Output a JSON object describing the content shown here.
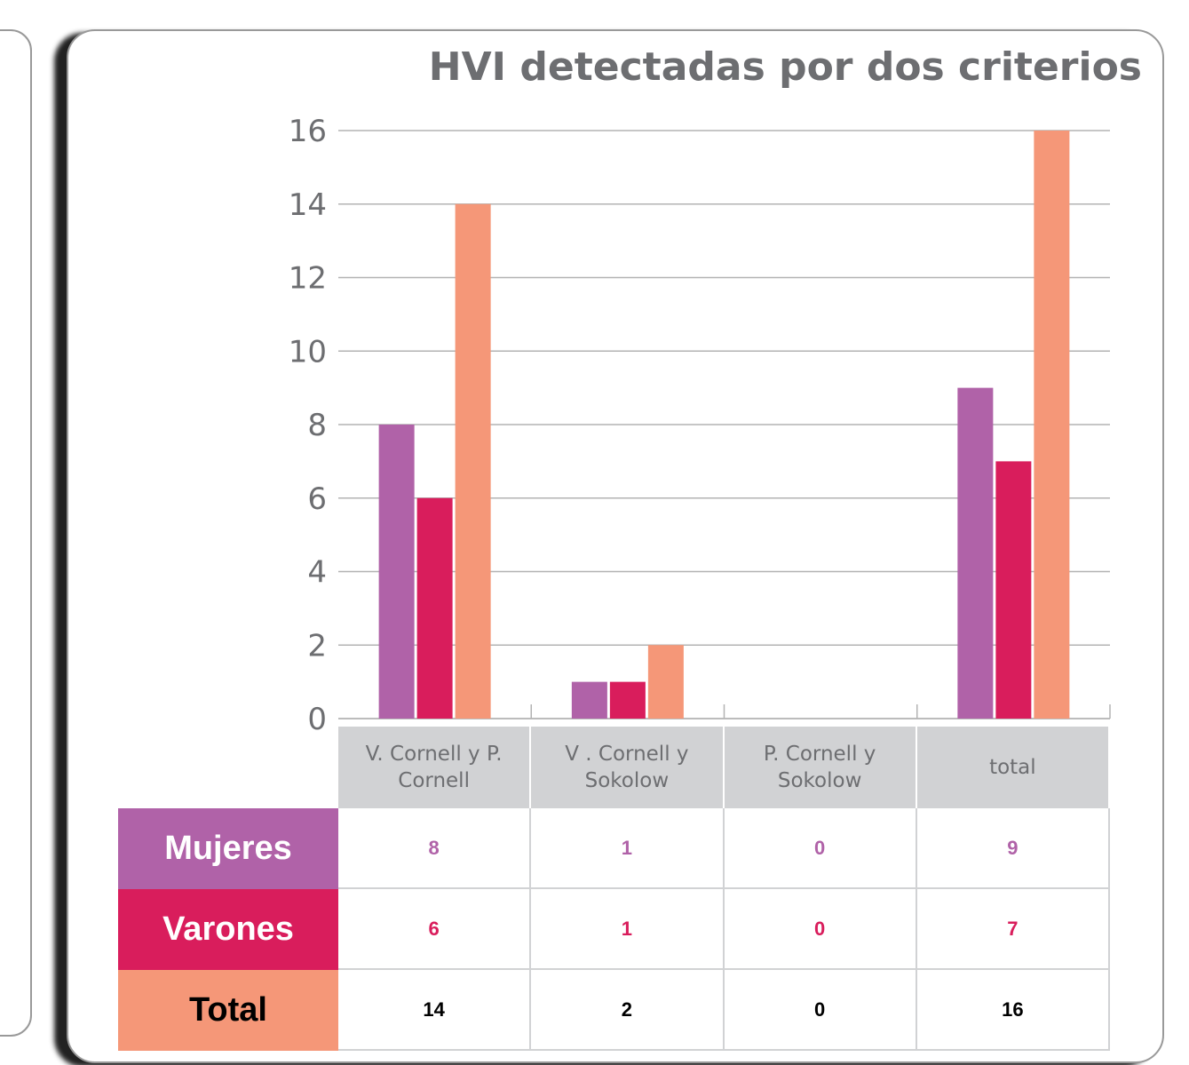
{
  "chart_data": {
    "type": "bar",
    "title": "HVI detectadas por dos criterios",
    "categories": [
      "V. Cornell y P. Cornell",
      "V . Cornell y Sokolow",
      "P. Cornell y Sokolow",
      "total"
    ],
    "series": [
      {
        "name": "Mujeres",
        "color": "#b062a8",
        "values": [
          8,
          1,
          0,
          9
        ]
      },
      {
        "name": "Varones",
        "color": "#d91d5c",
        "values": [
          6,
          1,
          0,
          7
        ]
      },
      {
        "name": "Total",
        "color": "#f59778",
        "values": [
          14,
          2,
          0,
          16
        ]
      }
    ],
    "ylim": [
      0,
      16
    ],
    "yticks": [
      0,
      2,
      4,
      6,
      8,
      10,
      12,
      14,
      16
    ],
    "grid": true
  }
}
